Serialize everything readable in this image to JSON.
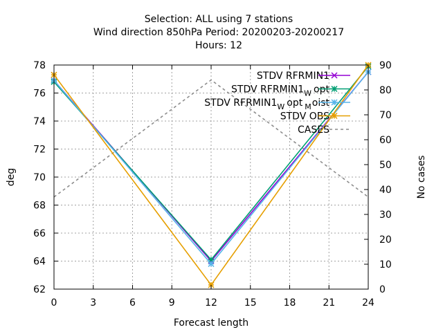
{
  "chart_data": {
    "type": "line",
    "title_lines": [
      "Selection: ALL using     7 stations",
      "Wind direction 850hPa   Period: 20200203-20200217",
      "Hours:  12"
    ],
    "xlabel": "Forecast length",
    "ylabel": "deg",
    "y2label": "No cases",
    "xlim": [
      0,
      24
    ],
    "ylim": [
      62,
      78
    ],
    "y2lim": [
      0,
      90
    ],
    "xticks": [
      "0",
      "3",
      "6",
      "9",
      "12",
      "15",
      "18",
      "21",
      "24"
    ],
    "yticks": [
      "62",
      "64",
      "66",
      "68",
      "70",
      "72",
      "74",
      "76",
      "78"
    ],
    "y2ticks": [
      "0",
      "10",
      "20",
      "30",
      "40",
      "50",
      "60",
      "70",
      "80",
      "90"
    ],
    "grid": true,
    "legend_position": "top-right",
    "x": [
      0,
      12,
      24
    ],
    "series": [
      {
        "name": "STDV RFRMIN1",
        "name_sub": "",
        "name_tail": "",
        "color": "#9400d3",
        "marker": "x",
        "axis": "y1",
        "values": [
          76.9,
          64.0,
          77.5
        ]
      },
      {
        "name": "STDV RFRMIN1",
        "name_sub": "W",
        "name_tail": "opt",
        "color": "#009e73",
        "marker": "star",
        "axis": "y1",
        "values": [
          76.8,
          64.1,
          77.9
        ]
      },
      {
        "name": "STDV RFRMIN1",
        "name_sub": "W",
        "name_tail": "opt",
        "name_sub2": "M",
        "name_tail2": "oist",
        "color": "#56b4e9",
        "marker": "star",
        "axis": "y1",
        "values": [
          76.9,
          63.8,
          77.5
        ]
      },
      {
        "name": "STDV OBS",
        "name_sub": "",
        "name_tail": "",
        "color": "#e69f00",
        "marker": "star",
        "axis": "y1",
        "values": [
          77.3,
          62.3,
          78.0
        ]
      },
      {
        "name": "CASES",
        "name_sub": "",
        "name_tail": "",
        "color": "#8c8c8c",
        "marker": "none",
        "dashed": true,
        "axis": "y2",
        "values": [
          37,
          84,
          37
        ]
      }
    ]
  }
}
